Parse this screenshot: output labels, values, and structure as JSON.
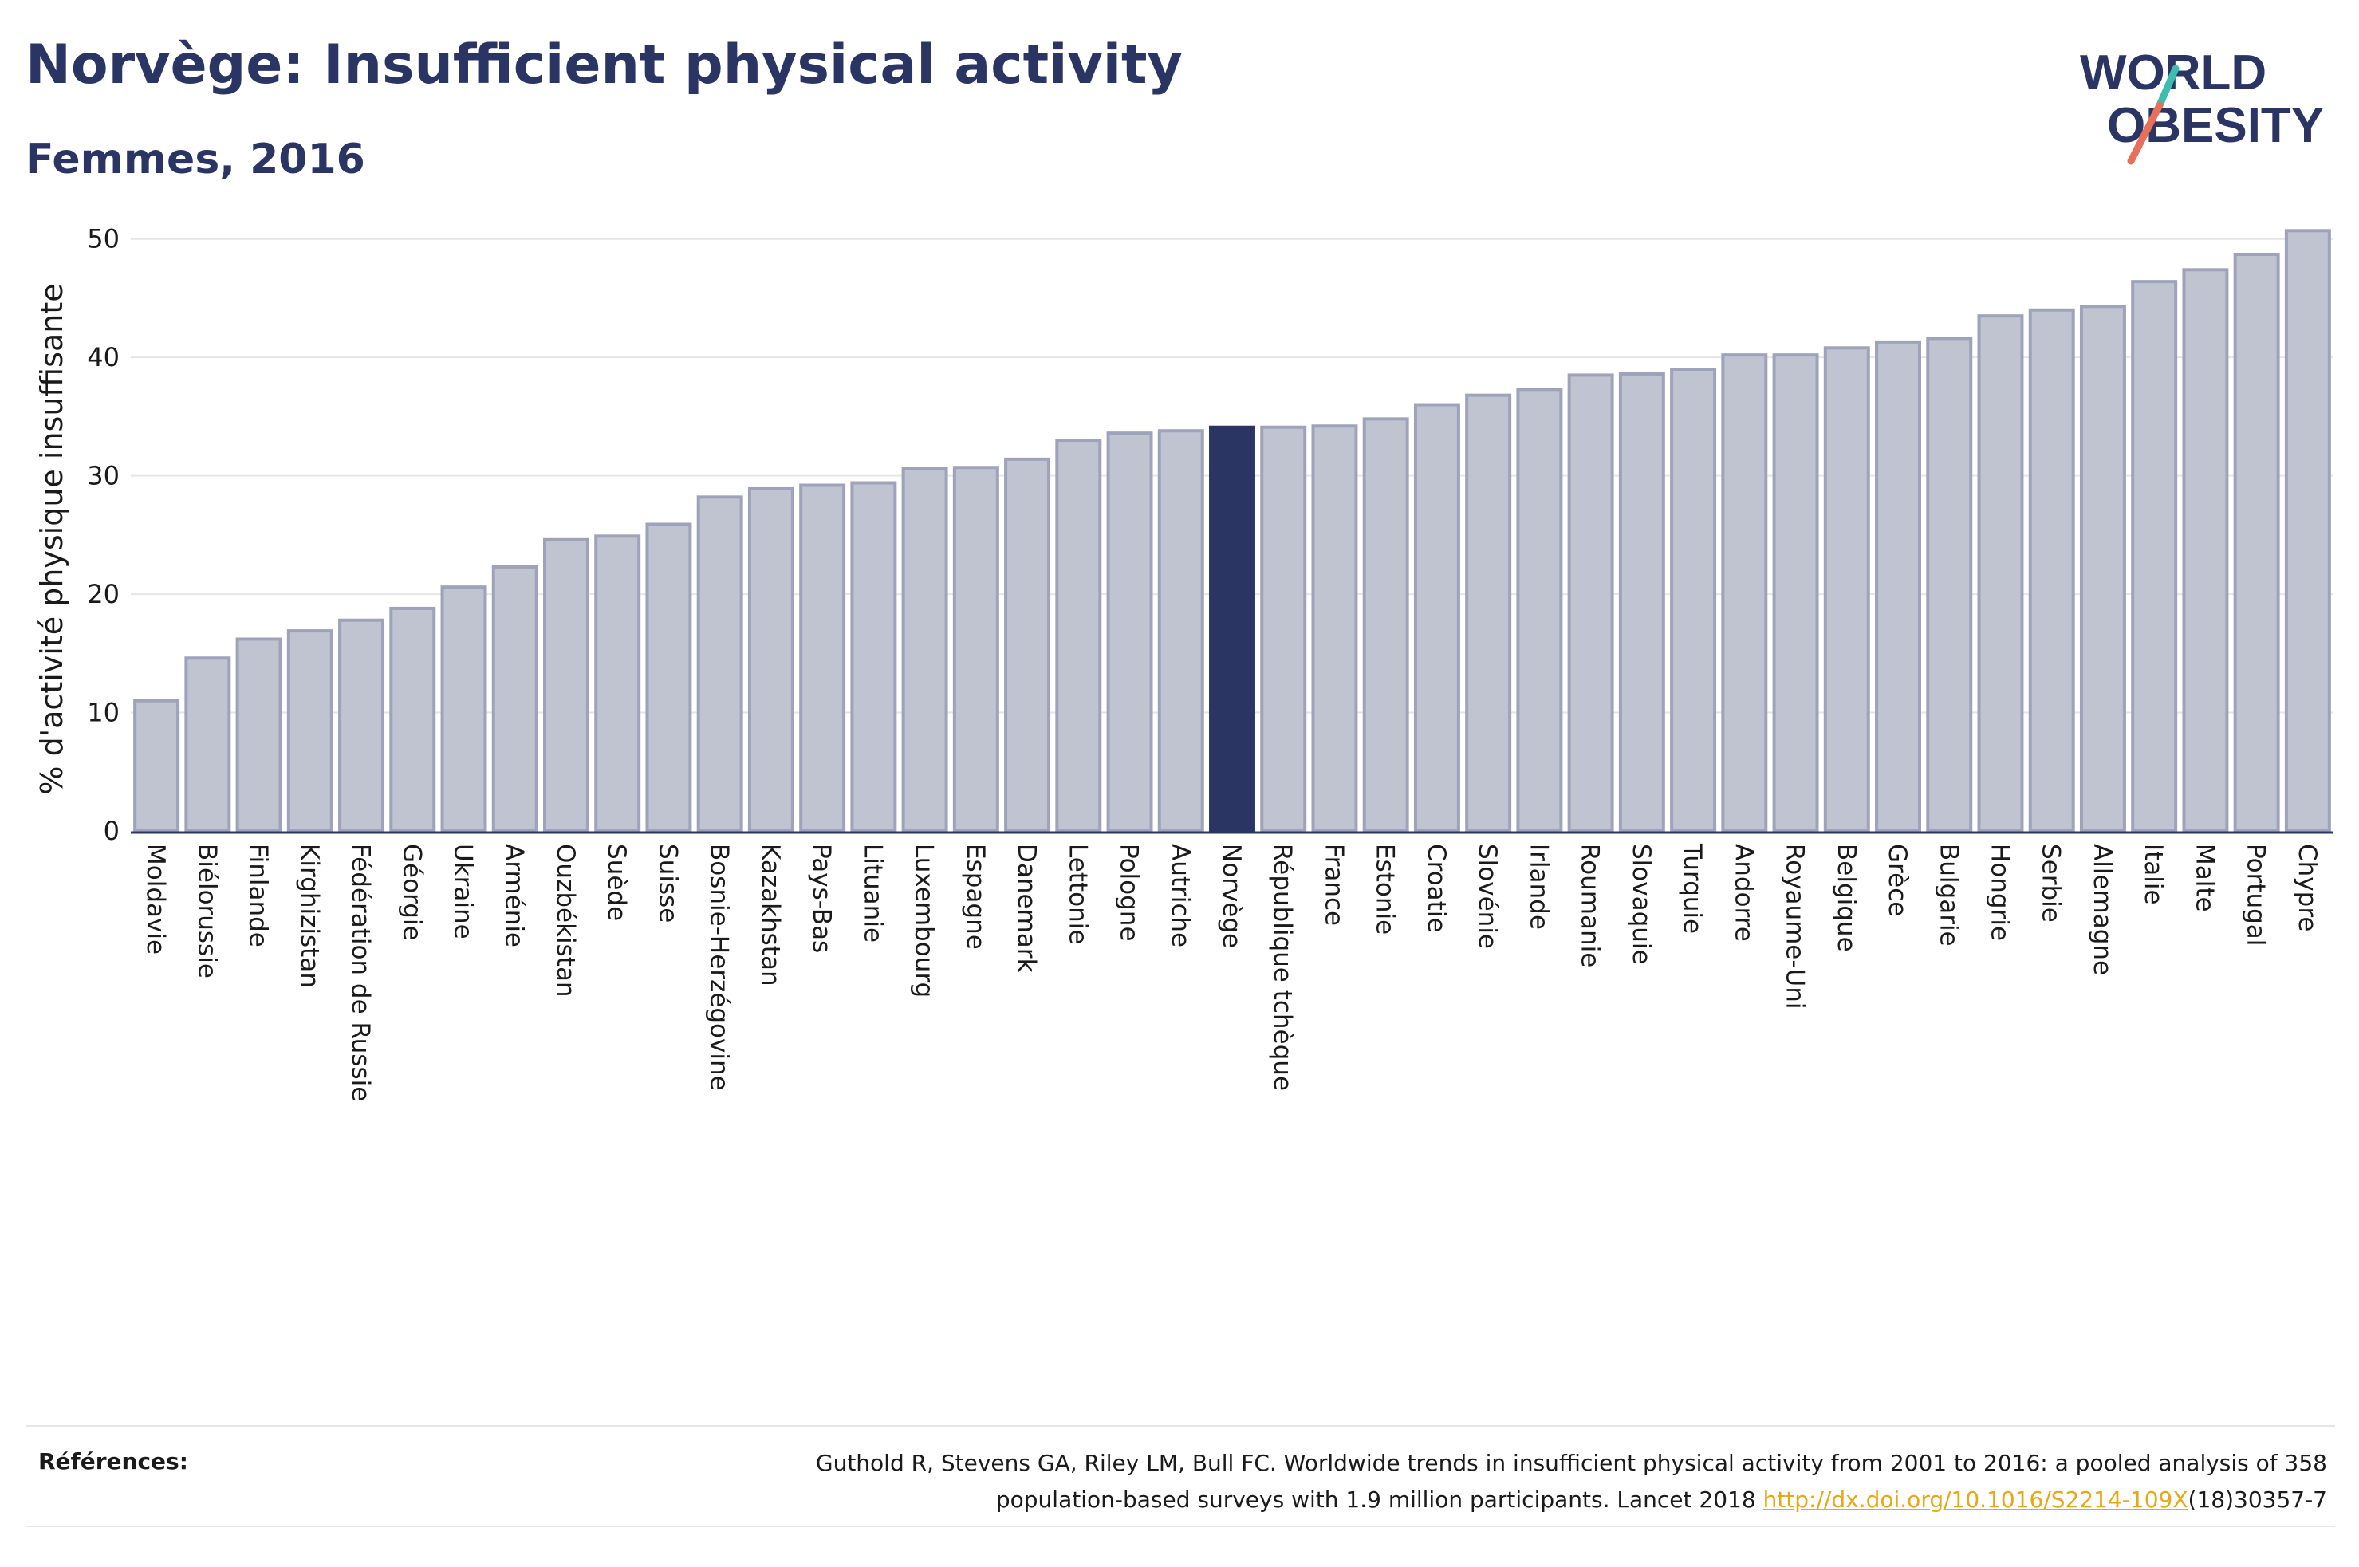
{
  "header": {
    "title": "Norvège: Insufficient physical activity",
    "subtitle": "Femmes, 2016"
  },
  "logo": {
    "line1": "WORLD",
    "line2": "OBESITY"
  },
  "references": {
    "label": "Références:",
    "text_1": "Guthold R, Stevens GA, Riley LM, Bull FC. Worldwide trends in insufficient physical activity from 2001 to 2016: a pooled analysis of 358",
    "text_2": "population-based surveys with 1.9 million participants. Lancet 2018 ",
    "link": "http://dx.doi.org/10.1016/S2214-109X",
    "text_3": "(18)30357-7"
  },
  "colors": {
    "bar": "#c0c3d0",
    "bar_border": "#9ea3ba",
    "highlight": "#2b3564",
    "title": "#2b3564",
    "grid": "#e6e6e6",
    "link": "#e6a817"
  },
  "chart_data": {
    "type": "bar",
    "ylabel": "% d'activité physique insuffisante",
    "ylim": [
      0,
      52
    ],
    "yticks": [
      0,
      10,
      20,
      30,
      40,
      50
    ],
    "grid": true,
    "highlight": "Norvège",
    "categories": [
      "Moldavie",
      "Biélorussie",
      "Finlande",
      "Kirghizistan",
      "Fédération de Russie",
      "Géorgie",
      "Ukraine",
      "Arménie",
      "Ouzbékistan",
      "Suède",
      "Suisse",
      "Bosnie-Herzégovine",
      "Kazakhstan",
      "Pays-Bas",
      "Lituanie",
      "Luxembourg",
      "Espagne",
      "Danemark",
      "Lettonie",
      "Pologne",
      "Autriche",
      "Norvège",
      "République tchèque",
      "France",
      "Estonie",
      "Croatie",
      "Slovénie",
      "Irlande",
      "Roumanie",
      "Slovaquie",
      "Turquie",
      "Andorre",
      "Royaume-Uni",
      "Belgique",
      "Grèce",
      "Bulgarie",
      "Hongrie",
      "Serbie",
      "Allemagne",
      "Italie",
      "Malte",
      "Portugal",
      "Chypre"
    ],
    "values": [
      11.0,
      14.6,
      16.2,
      16.9,
      17.8,
      18.8,
      20.6,
      22.3,
      24.6,
      24.9,
      25.9,
      28.2,
      28.9,
      29.2,
      29.4,
      30.6,
      30.7,
      31.4,
      33.0,
      33.6,
      33.8,
      34.1,
      34.1,
      34.2,
      34.8,
      36.0,
      36.8,
      37.3,
      38.5,
      38.6,
      39.0,
      40.2,
      40.2,
      40.8,
      41.3,
      41.6,
      43.5,
      44.0,
      44.3,
      46.4,
      47.4,
      48.7,
      50.7
    ]
  }
}
